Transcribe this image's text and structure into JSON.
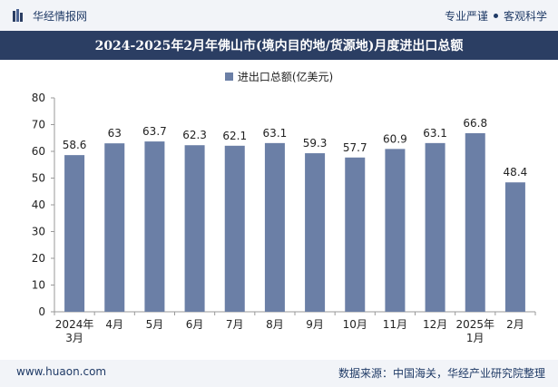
{
  "header": {
    "brand": "华经情报网",
    "right_text_1": "专业严谨",
    "right_text_2": "客观科学"
  },
  "chart_title": "2024-2025年2月年佛山市(境内目的地/货源地)月度进出口总额",
  "footer": {
    "website": "www.huaon.com",
    "source": "数据来源：中国海关，华经产业研究院整理"
  },
  "colors": {
    "bar": "#6b7fa6",
    "title_bg": "#2b3e63"
  },
  "chart_data": {
    "type": "bar",
    "title": "2024-2025年2月年佛山市(境内目的地/货源地)月度进出口总额",
    "legend": [
      "进出口总额(亿美元)"
    ],
    "categories": [
      [
        "2024年",
        "3月"
      ],
      [
        "4月"
      ],
      [
        "5月"
      ],
      [
        "6月"
      ],
      [
        "7月"
      ],
      [
        "8月"
      ],
      [
        "9月"
      ],
      [
        "10月"
      ],
      [
        "11月"
      ],
      [
        "12月"
      ],
      [
        "2025年",
        "1月"
      ],
      [
        "2月"
      ]
    ],
    "series": [
      {
        "name": "进出口总额(亿美元)",
        "values": [
          58.6,
          63,
          63.7,
          62.3,
          62.1,
          63.1,
          59.3,
          57.7,
          60.9,
          63.1,
          66.8,
          48.4
        ],
        "labels": [
          "58.6",
          "63",
          "63.7",
          "62.3",
          "62.1",
          "63.1",
          "59.3",
          "57.7",
          "60.9",
          "63.1",
          "66.8",
          "48.4"
        ]
      }
    ],
    "ylim": [
      0,
      80
    ],
    "yticks": [
      0,
      10,
      20,
      30,
      40,
      50,
      60,
      70,
      80
    ],
    "grid": false
  }
}
